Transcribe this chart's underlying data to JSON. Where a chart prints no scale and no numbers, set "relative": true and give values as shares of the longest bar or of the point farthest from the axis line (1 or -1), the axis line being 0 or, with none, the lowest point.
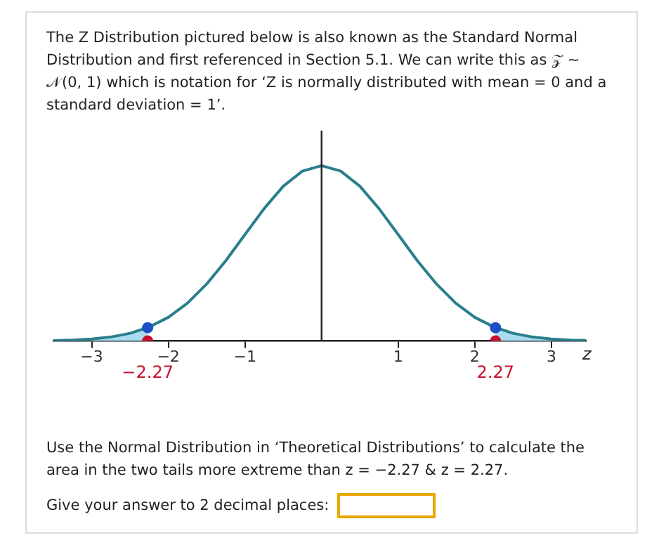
{
  "chart_data": {
    "type": "line",
    "title": "The Z Distribution pictured below is also known as the Standard Normal Distribution and first referenced in Section 5.1. We can write this as 𝒵 ∼ 𝒩(0, 1) which is notation for ‘Z is normally distributed with mean = 0 and a standard deviation = 1’.",
    "xlabel": "z",
    "relative": true,
    "grid": false,
    "legend": false,
    "marker": "none",
    "xlim": [
      -3.5,
      3.45
    ],
    "xticks": [
      {
        "value": -3,
        "label": "−3"
      },
      {
        "value": -2,
        "label": "−2"
      },
      {
        "value": -1,
        "label": "−1"
      },
      1,
      2,
      3
    ],
    "series": [
      {
        "color": "#2a7f8c",
        "x": [
          -3.5,
          -3.25,
          -3,
          -2.75,
          -2.5,
          -2.25,
          -2,
          -1.75,
          -1.5,
          -1.25,
          -1,
          -0.75,
          -0.5,
          -0.25,
          0,
          0.25,
          0.5,
          0.75,
          1,
          1.25,
          1.5,
          1.75,
          2,
          2.25,
          2.5,
          2.75,
          3,
          3.25,
          3.45
        ],
        "values": [
          0.002,
          0.005,
          0.011,
          0.023,
          0.044,
          0.08,
          0.135,
          0.216,
          0.325,
          0.458,
          0.607,
          0.755,
          0.883,
          0.969,
          1,
          0.969,
          0.883,
          0.755,
          0.607,
          0.458,
          0.325,
          0.216,
          0.135,
          0.08,
          0.044,
          0.023,
          0.011,
          0.005,
          0.003
        ]
      },
      {
        "type": "area",
        "color": "#a9dcee",
        "x": [
          -3.5,
          -3.25,
          -3,
          -2.75,
          -2.5,
          -2.27
        ],
        "values": [
          0.002,
          0.005,
          0.011,
          0.023,
          0.044,
          0.076
        ]
      },
      {
        "type": "area",
        "color": "#a9dcee",
        "x": [
          2.27,
          2.5,
          2.75,
          3,
          3.25,
          3.45
        ],
        "values": [
          0.076,
          0.044,
          0.023,
          0.011,
          0.005,
          0.003
        ]
      },
      {
        "type": "scatter",
        "marker": "circle",
        "color": "#1f4fc4",
        "x": [
          -2.27,
          2.27
        ],
        "values": [
          0.076,
          0.076
        ]
      },
      {
        "type": "scatter",
        "marker": "circle",
        "color": "#c8102e",
        "x": [
          -2.27,
          2.27
        ],
        "values": [
          0,
          0
        ]
      }
    ],
    "annotations": [
      {
        "text": "−2.27",
        "x": -2.27,
        "y": 0
      },
      {
        "text": "2.27",
        "x": 2.27,
        "y": 0
      },
      "Use the Normal Distribution in ‘Theoretical Distributions’ to calculate the area in the two tails more extreme than z = −2.27 & z = 2.27.",
      "Give your answer to 2 decimal places:"
    ]
  }
}
